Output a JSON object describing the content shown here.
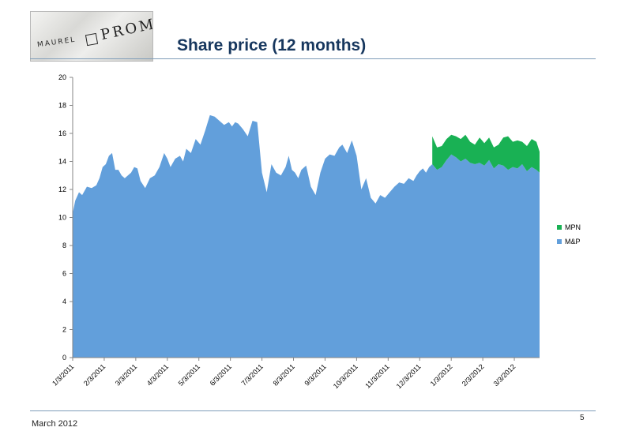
{
  "header": {
    "title": "Share price (12 months)",
    "logo_text_left": "MAUREL",
    "logo_text_right": "PROM"
  },
  "footer": {
    "date": "March 2012",
    "page": "5"
  },
  "colors": {
    "mp": "#629fdb",
    "mpn": "#19b154",
    "title": "#17375e",
    "rule": "#7f9db9"
  },
  "chart_data": {
    "type": "area",
    "title": "",
    "xlabel": "",
    "ylabel": "",
    "ylim": [
      0,
      20
    ],
    "y_ticks": [
      0,
      2,
      4,
      6,
      8,
      10,
      12,
      14,
      16,
      18,
      20
    ],
    "x_tick_labels": [
      "1/3/2011",
      "2/3/2011",
      "3/3/2011",
      "4/3/2011",
      "5/3/2011",
      "6/3/2011",
      "7/3/2011",
      "8/3/2011",
      "9/3/2011",
      "10/3/2011",
      "11/3/2011",
      "12/3/2011",
      "1/3/2012",
      "2/3/2012",
      "3/3/2012"
    ],
    "x_range_months": [
      0,
      14.8
    ],
    "legend": {
      "placement": "right",
      "entries": [
        "MPN",
        "M&P"
      ]
    },
    "stacked": true,
    "series": [
      {
        "name": "M&P",
        "x": [
          0.0,
          0.08,
          0.2,
          0.3,
          0.45,
          0.6,
          0.75,
          0.85,
          0.95,
          1.05,
          1.15,
          1.25,
          1.35,
          1.45,
          1.55,
          1.65,
          1.75,
          1.85,
          1.95,
          2.05,
          2.15,
          2.3,
          2.45,
          2.6,
          2.75,
          2.9,
          3.0,
          3.1,
          3.25,
          3.4,
          3.5,
          3.6,
          3.75,
          3.9,
          4.05,
          4.2,
          4.35,
          4.5,
          4.65,
          4.8,
          4.95,
          5.05,
          5.15,
          5.25,
          5.4,
          5.55,
          5.7,
          5.85,
          6.0,
          6.15,
          6.3,
          6.45,
          6.6,
          6.75,
          6.85,
          6.95,
          7.05,
          7.15,
          7.25,
          7.4,
          7.55,
          7.7,
          7.85,
          8.0,
          8.15,
          8.3,
          8.45,
          8.55,
          8.7,
          8.85,
          9.0,
          9.15,
          9.3,
          9.45,
          9.6,
          9.75,
          9.9,
          10.05,
          10.2,
          10.35,
          10.5,
          10.65,
          10.8,
          10.9,
          11.0,
          11.1,
          11.2,
          11.3,
          11.4,
          11.55,
          11.7,
          11.85,
          12.0,
          12.15,
          12.3,
          12.45,
          12.6,
          12.75,
          12.9,
          13.05,
          13.2,
          13.35,
          13.5,
          13.65,
          13.8,
          13.95,
          14.1,
          14.25,
          14.4,
          14.55,
          14.7,
          14.8
        ],
        "values": [
          10.3,
          11.2,
          11.8,
          11.6,
          12.2,
          12.1,
          12.3,
          12.8,
          13.6,
          13.8,
          14.4,
          14.6,
          13.4,
          13.4,
          13.0,
          12.8,
          13.0,
          13.2,
          13.6,
          13.5,
          12.6,
          12.1,
          12.8,
          13.0,
          13.6,
          14.6,
          14.2,
          13.6,
          14.2,
          14.4,
          14.0,
          14.9,
          14.6,
          15.6,
          15.2,
          16.2,
          17.3,
          17.2,
          16.9,
          16.6,
          16.8,
          16.5,
          16.8,
          16.7,
          16.3,
          15.8,
          16.9,
          16.8,
          13.2,
          11.8,
          13.8,
          13.2,
          13.0,
          13.6,
          14.4,
          13.4,
          13.2,
          12.8,
          13.4,
          13.7,
          12.2,
          11.6,
          13.2,
          14.2,
          14.5,
          14.4,
          15.0,
          15.2,
          14.6,
          15.5,
          14.4,
          12.0,
          12.8,
          11.4,
          11.0,
          11.6,
          11.4,
          11.8,
          12.2,
          12.5,
          12.4,
          12.8,
          12.6,
          13.0,
          13.3,
          13.5,
          13.2,
          13.6,
          13.8,
          13.4,
          13.6,
          14.1,
          14.5,
          14.3,
          14.0,
          14.2,
          13.9,
          13.8,
          13.9,
          13.7,
          14.1,
          13.5,
          13.8,
          13.7,
          13.4,
          13.6,
          13.5,
          13.8,
          13.3,
          13.6,
          13.4,
          13.2
        ]
      },
      {
        "name": "MPN",
        "x": [
          11.4,
          11.55,
          11.7,
          11.85,
          12.0,
          12.15,
          12.3,
          12.45,
          12.6,
          12.75,
          12.9,
          13.05,
          13.2,
          13.35,
          13.5,
          13.65,
          13.8,
          13.95,
          14.1,
          14.25,
          14.4,
          14.55,
          14.7,
          14.8
        ],
        "values": [
          2.0,
          1.6,
          1.5,
          1.5,
          1.4,
          1.5,
          1.6,
          1.7,
          1.5,
          1.4,
          1.8,
          1.6,
          1.6,
          1.5,
          1.4,
          2.0,
          2.4,
          1.8,
          2.0,
          1.6,
          1.8,
          2.0,
          2.0,
          1.5
        ]
      }
    ]
  }
}
